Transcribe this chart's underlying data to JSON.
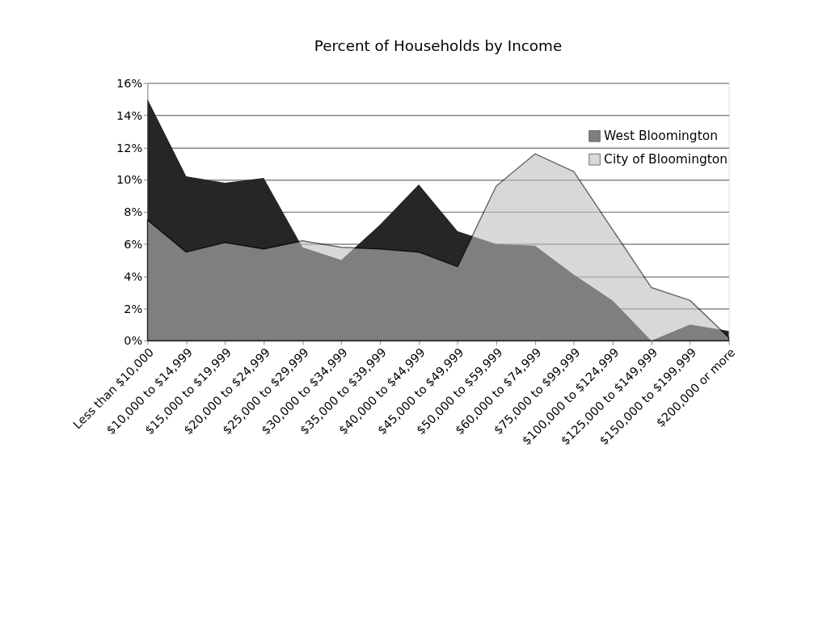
{
  "chart_data": {
    "type": "area",
    "title": "Percent of Households by Income",
    "categories": [
      "Less than $10,000",
      "$10,000 to $14,999",
      "$15,000 to $19,999",
      "$20,000 to $24,999",
      "$25,000 to $29,999",
      "$30,000 to $34,999",
      "$35,000 to $39,999",
      "$40,000 to $44,999",
      "$45,000 to $49,999",
      "$50,000 to $59,999",
      "$60,000 to $74,999",
      "$75,000 to $99,999",
      "$100,000 to $124,999",
      "$125,000 to $149,999",
      "$150,000 to $199,999",
      "$200,000 or more"
    ],
    "series": [
      {
        "name": "West Bloomington",
        "color": "#262626",
        "values": [
          15.0,
          10.2,
          9.8,
          10.1,
          5.8,
          5.0,
          7.2,
          9.7,
          6.8,
          6.0,
          5.9,
          4.1,
          2.5,
          0.0,
          1.0,
          0.6
        ]
      },
      {
        "name": "City of Bloomington",
        "color": "#bebebe",
        "values": [
          7.5,
          5.5,
          6.1,
          5.7,
          6.2,
          5.8,
          5.7,
          5.5,
          4.6,
          9.6,
          11.6,
          10.5,
          6.9,
          3.3,
          2.5,
          0.2
        ]
      }
    ],
    "ylim": [
      0,
      16
    ],
    "yticks": [
      {
        "value": 0,
        "label": "0%"
      },
      {
        "value": 2,
        "label": "2%"
      },
      {
        "value": 4,
        "label": "4%"
      },
      {
        "value": 6,
        "label": "6%"
      },
      {
        "value": 8,
        "label": "8%"
      },
      {
        "value": 10,
        "label": "10%"
      },
      {
        "value": 12,
        "label": "12%"
      },
      {
        "value": 14,
        "label": "14%"
      },
      {
        "value": 16,
        "label": "16%"
      }
    ],
    "grid": "y",
    "legend": "top right"
  }
}
